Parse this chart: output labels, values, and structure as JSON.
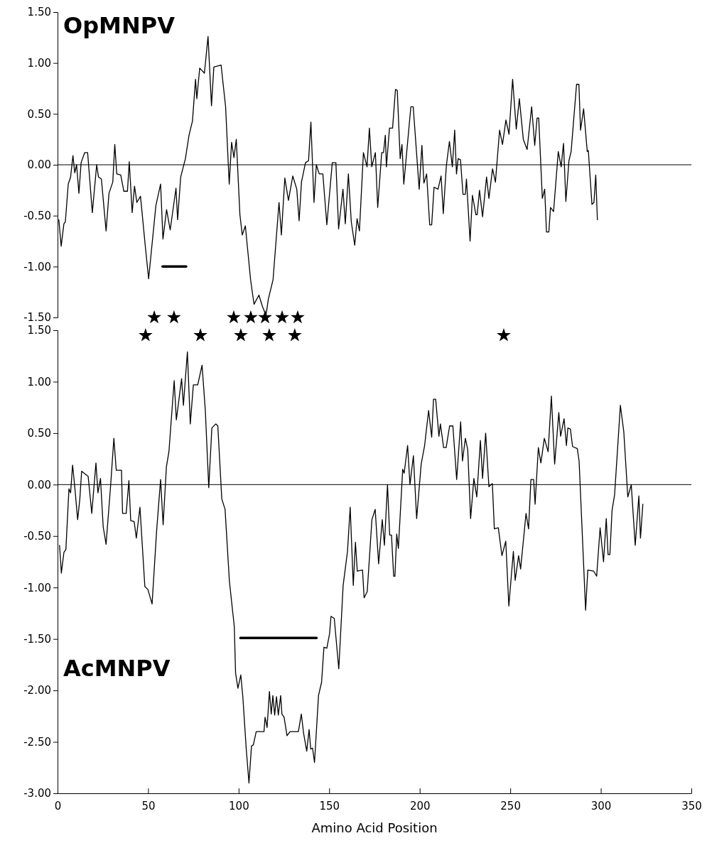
{
  "chart_data": [
    {
      "type": "line",
      "title": "OpMNPV",
      "xlim": [
        0,
        350
      ],
      "ylim": [
        -1.5,
        1.5
      ],
      "tick_labels": "y",
      "yticks": [
        {
          "value": -1.5,
          "label": "-1.50"
        },
        {
          "value": -1,
          "label": "-1.00"
        },
        {
          "value": -0.5,
          "label": "-0.50"
        },
        {
          "value": 0,
          "label": "0.00"
        },
        {
          "value": 0.5,
          "label": "0.50"
        },
        {
          "value": 1,
          "label": "1.00"
        },
        {
          "value": 1.5,
          "label": "1.50"
        }
      ],
      "ref_lines": [
        {
          "axis": "y",
          "value": 0,
          "color": "#000000"
        }
      ],
      "series": [
        {
          "type": "scatter",
          "marker": "star",
          "color": "#000000",
          "x": [
            53.4,
            64.3,
            97.3,
            106.7,
            114.6,
            124,
            132.6
          ],
          "values": [
            -1.5,
            -1.5,
            -1.5,
            -1.5,
            -1.5,
            -1.5,
            -1.5
          ]
        },
        {
          "color": "#000000",
          "x": [
            0.7,
            2,
            3.5,
            4.3,
            5.9,
            7.2,
            8.5,
            9.5,
            10.5,
            11.8,
            13,
            15,
            16.6,
            19.2,
            21.6,
            22.6,
            24.2,
            26.8,
            28.4,
            30.5,
            31.6,
            32.7,
            34.9,
            36.6,
            38.6,
            39.6,
            41.2,
            42.5,
            43.8,
            45.8,
            48.4,
            50.3,
            54.3,
            56.9,
            58.2,
            60.2,
            62.2,
            65.4,
            66.3,
            68,
            70.6,
            72.6,
            74.5,
            76.2,
            76.9,
            78.5,
            81.1,
            83.1,
            85,
            86.3,
            90.3,
            92.8,
            94.8,
            96.1,
            97.4,
            98.7,
            100.7,
            102,
            103.7,
            106.6,
            108.5,
            111.2,
            113.1,
            115.1,
            116.4,
            119,
            122.3,
            123.6,
            125.5,
            127.5,
            129.9,
            132.1,
            133.4,
            134.7,
            136.9,
            138.6,
            139.9,
            141.6,
            142.9,
            144.5,
            146.5,
            148.7,
            151.7,
            153.7,
            155.2,
            157.6,
            158.9,
            160.6,
            162.2,
            164.1,
            165.4,
            166.7,
            168.9,
            170.9,
            172.2,
            173.5,
            175.5,
            176.8,
            179,
            180,
            181,
            181.6,
            183.3,
            185,
            186.6,
            187.6,
            189.2,
            190.2,
            191.2,
            195.1,
            196.4,
            199.7,
            201.2,
            202.3,
            203.8,
            205.5,
            206.6,
            207.9,
            210.1,
            211.8,
            213,
            214.7,
            216.4,
            218,
            219.3,
            220.3,
            221.2,
            222.5,
            223.9,
            225.2,
            225.8,
            227.8,
            229.1,
            231,
            231.7,
            233,
            234.7,
            236.9,
            238.2,
            240.2,
            241.8,
            244.1,
            245.7,
            247.6,
            249.3,
            251.3,
            253.3,
            255,
            257.2,
            259.3,
            261.8,
            263.5,
            264.8,
            265.7,
            267.7,
            269,
            270,
            271.3,
            272.2,
            273.9,
            276.5,
            278.1,
            279.4,
            280.7,
            282.4,
            283.6,
            286.6,
            287.9,
            288.8,
            290.5,
            292.5,
            293.1,
            295.1,
            296.2,
            297.2,
            298.1
          ],
          "values": [
            -0.54,
            -0.8,
            -0.58,
            -0.56,
            -0.19,
            -0.12,
            0.09,
            -0.08,
            0,
            -0.28,
            0.02,
            0.12,
            0.12,
            -0.47,
            0,
            -0.12,
            -0.14,
            -0.65,
            -0.28,
            -0.17,
            0.2,
            -0.09,
            -0.1,
            -0.26,
            -0.26,
            0.03,
            -0.47,
            -0.21,
            -0.37,
            -0.31,
            -0.79,
            -1.12,
            -0.4,
            -0.19,
            -0.73,
            -0.44,
            -0.64,
            -0.23,
            -0.54,
            -0.12,
            0.06,
            0.29,
            0.43,
            0.84,
            0.65,
            0.95,
            0.9,
            1.26,
            0.58,
            0.96,
            0.98,
            0.57,
            -0.19,
            0.22,
            0.07,
            0.25,
            -0.49,
            -0.69,
            -0.6,
            -1.13,
            -1.37,
            -1.28,
            -1.39,
            -1.48,
            -1.32,
            -1.13,
            -0.37,
            -0.69,
            -0.13,
            -0.35,
            -0.11,
            -0.24,
            -0.55,
            -0.17,
            0.02,
            0.04,
            0.42,
            -0.37,
            0,
            -0.09,
            -0.09,
            -0.59,
            0.02,
            0.02,
            -0.63,
            -0.24,
            -0.58,
            -0.09,
            -0.56,
            -0.79,
            -0.53,
            -0.65,
            0.12,
            -0.02,
            0.36,
            -0.02,
            0.12,
            -0.42,
            0.12,
            0.12,
            0.29,
            -0.02,
            0.36,
            0.36,
            0.74,
            0.73,
            0.06,
            0.2,
            -0.19,
            0.57,
            0.57,
            -0.24,
            0.19,
            -0.18,
            -0.09,
            -0.59,
            -0.59,
            -0.22,
            -0.24,
            -0.11,
            -0.48,
            -0.01,
            0.23,
            -0.02,
            0.34,
            -0.09,
            0.06,
            0.05,
            -0.29,
            -0.29,
            -0.14,
            -0.75,
            -0.3,
            -0.49,
            -0.49,
            -0.25,
            -0.51,
            -0.12,
            -0.33,
            -0.04,
            -0.17,
            0.34,
            0.2,
            0.44,
            0.3,
            0.84,
            0.35,
            0.65,
            0.25,
            0.15,
            0.57,
            0.19,
            0.46,
            0.46,
            -0.33,
            -0.24,
            -0.66,
            -0.66,
            -0.42,
            -0.46,
            0.13,
            -0.02,
            0.21,
            -0.36,
            0.04,
            0.13,
            0.79,
            0.79,
            0.34,
            0.55,
            0.13,
            0.14,
            -0.39,
            -0.37,
            -0.1,
            -0.54
          ]
        },
        {
          "color": "#000000",
          "x": [
            58,
            71
          ],
          "values": [
            -1,
            -1
          ]
        }
      ]
    },
    {
      "type": "line",
      "title": "AcMNPV",
      "xlabel": "Amino Acid Position",
      "xlim": [
        0,
        350
      ],
      "ylim": [
        -3,
        1.5
      ],
      "xticks": [
        0,
        50,
        100,
        150,
        200,
        250,
        300,
        350
      ],
      "yticks": [
        {
          "value": -3,
          "label": "-3.00"
        },
        {
          "value": -2.5,
          "label": "-2.50"
        },
        {
          "value": -2,
          "label": "-2.00"
        },
        {
          "value": -1.5,
          "label": "-1.50"
        },
        {
          "value": -1,
          "label": "-1.00"
        },
        {
          "value": -0.5,
          "label": "-0.50"
        },
        {
          "value": 0,
          "label": "0.00"
        },
        {
          "value": 0.5,
          "label": "0.50"
        },
        {
          "value": 1,
          "label": "1.00"
        },
        {
          "value": 1.5,
          "label": "1.50"
        }
      ],
      "ref_lines": [
        {
          "axis": "y",
          "value": 0,
          "color": "#000000"
        }
      ],
      "series": [
        {
          "type": "scatter",
          "marker": "star",
          "color": "#000000",
          "x": [
            48.6,
            78.9,
            101.2,
            116.9,
            131,
            246.4
          ],
          "values": [
            1.45,
            1.45,
            1.45,
            1.45,
            1.45,
            1.45
          ]
        },
        {
          "color": "#000000",
          "x": [
            1.1,
            2.1,
            3.5,
            4.6,
            6.3,
            7.2,
            8.3,
            9.6,
            11.1,
            12.3,
            13.3,
            16.9,
            18.9,
            21.2,
            22.3,
            23.7,
            25.2,
            26.8,
            29.3,
            31.1,
            32.4,
            35.3,
            35.9,
            37.9,
            39.4,
            40.4,
            42.3,
            43.5,
            45.5,
            48.2,
            49.9,
            52.2,
            54.7,
            56.9,
            58.3,
            60.1,
            61.5,
            64.4,
            65.6,
            68.5,
            69.5,
            71.7,
            73.3,
            75,
            77.4,
            79.8,
            81.6,
            83.5,
            85.2,
            87.4,
            88.5,
            90.7,
            92.5,
            94.9,
            97.6,
            98.3,
            99.6,
            101.2,
            102.3,
            104.2,
            105.7,
            107.1,
            108.1,
            109.7,
            114,
            114.6,
            115.7,
            117,
            118,
            118.9,
            119.9,
            120.9,
            121.9,
            123.2,
            123.9,
            125.1,
            126.7,
            128.4,
            133,
            134.6,
            135.9,
            137.6,
            138.9,
            139.8,
            140.8,
            141.9,
            144.1,
            145.8,
            147.1,
            148.7,
            150.2,
            151,
            152.8,
            155.3,
            157.7,
            160.1,
            161.6,
            163.3,
            164.5,
            165.5,
            168.4,
            169.3,
            171,
            173.6,
            175.4,
            177.3,
            179.3,
            180.5,
            182.2,
            183.4,
            184.4,
            185.6,
            186.3,
            187.3,
            188.2,
            190.6,
            191.4,
            193.3,
            194.6,
            196.5,
            198.3,
            200.8,
            202.7,
            204.9,
            206.6,
            207.6,
            208.8,
            210.6,
            211.4,
            213.2,
            214.6,
            216.5,
            218.3,
            220.4,
            222.6,
            223.6,
            225.2,
            226.5,
            228.1,
            229.9,
            231.5,
            233.5,
            234.7,
            236.4,
            238.2,
            240.1,
            241.2,
            243.4,
            245.4,
            247.5,
            249.2,
            251.7,
            252.7,
            254.6,
            255.7,
            258.7,
            260.1,
            261.4,
            262.9,
            263.7,
            265.5,
            266.9,
            268.8,
            270.9,
            272.7,
            274.5,
            276.8,
            277.8,
            279.7,
            281,
            281.8,
            283.2,
            284.4,
            287,
            288,
            291.6,
            292.8,
            296,
            297.7,
            299.6,
            301.5,
            303,
            304,
            305,
            306.2,
            307.6,
            310.8,
            312.7,
            314.9,
            316.8,
            319,
            321,
            321.9,
            323.2
          ],
          "values": [
            -0.59,
            -0.86,
            -0.66,
            -0.63,
            -0.04,
            -0.08,
            0.19,
            -0.04,
            -0.34,
            -0.14,
            0.13,
            0.08,
            -0.28,
            0.21,
            -0.08,
            0.06,
            -0.41,
            -0.58,
            -0.01,
            0.45,
            0.14,
            0.14,
            -0.28,
            -0.28,
            0.04,
            -0.35,
            -0.36,
            -0.52,
            -0.22,
            -0.99,
            -1.02,
            -1.16,
            -0.45,
            0.05,
            -0.39,
            0.17,
            0.32,
            1.01,
            0.63,
            1.03,
            0.77,
            1.29,
            0.59,
            0.97,
            0.97,
            1.16,
            0.72,
            -0.03,
            0.55,
            0.59,
            0.57,
            -0.14,
            -0.24,
            -0.94,
            -1.38,
            -1.83,
            -1.98,
            -1.85,
            -2.06,
            -2.57,
            -2.9,
            -2.54,
            -2.53,
            -2.4,
            -2.4,
            -2.26,
            -2.36,
            -2.01,
            -2.23,
            -2.05,
            -2.24,
            -2.06,
            -2.24,
            -2.05,
            -2.23,
            -2.26,
            -2.44,
            -2.4,
            -2.4,
            -2.23,
            -2.42,
            -2.59,
            -2.38,
            -2.57,
            -2.56,
            -2.7,
            -2.05,
            -1.92,
            -1.58,
            -1.59,
            -1.45,
            -1.28,
            -1.3,
            -1.79,
            -0.98,
            -0.65,
            -0.22,
            -0.98,
            -0.56,
            -0.84,
            -0.83,
            -1.1,
            -1.04,
            -0.34,
            -0.24,
            -0.77,
            -0.34,
            -0.59,
            0,
            -0.49,
            -0.49,
            -0.89,
            -0.89,
            -0.48,
            -0.62,
            0.15,
            0.11,
            0.38,
            0,
            0.28,
            -0.33,
            0.2,
            0.38,
            0.72,
            0.46,
            0.83,
            0.83,
            0.47,
            0.59,
            0.36,
            0.36,
            0.57,
            0.57,
            0.05,
            0.61,
            0.23,
            0.45,
            0.34,
            -0.33,
            0.06,
            -0.12,
            0.43,
            0.06,
            0.5,
            -0.02,
            0.01,
            -0.43,
            -0.42,
            -0.69,
            -0.55,
            -1.18,
            -0.65,
            -0.93,
            -0.69,
            -0.82,
            -0.28,
            -0.43,
            0.05,
            0.05,
            -0.19,
            0.36,
            0.21,
            0.45,
            0.32,
            0.86,
            0.2,
            0.7,
            0.47,
            0.64,
            0.38,
            0.55,
            0.54,
            0.37,
            0.35,
            0.23,
            -1.22,
            -0.83,
            -0.84,
            -0.89,
            -0.42,
            -0.75,
            -0.33,
            -0.68,
            -0.68,
            -0.25,
            -0.1,
            0.77,
            0.51,
            -0.12,
            0,
            -0.59,
            -0.11,
            -0.52,
            -0.19
          ]
        },
        {
          "color": "#000000",
          "x": [
            101,
            143
          ],
          "values": [
            -1.49,
            -1.49
          ]
        }
      ]
    }
  ]
}
